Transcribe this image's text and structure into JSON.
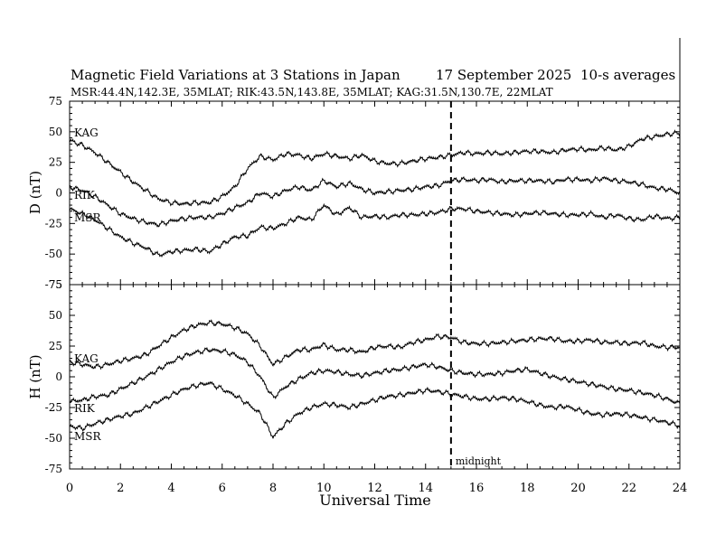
{
  "header": {
    "title": "Magnetic Field Variations at 3 Stations in Japan",
    "date": "17 September 2025",
    "averaging": "10-s averages",
    "stations": "MSR:44.4N,142.3E, 35MLAT;  RIK:43.5N,143.8E, 35MLAT;  KAG:31.5N,130.7E, 22MLAT"
  },
  "annotation": {
    "midnight_label": "midnight",
    "midnight_ut": 15
  },
  "chart_data": [
    {
      "type": "line",
      "panel": "top",
      "ylabel": "D (nT)",
      "ylim": [
        -75,
        75
      ],
      "yticks": [
        -75,
        -50,
        -25,
        0,
        25,
        50,
        75
      ],
      "xlim": [
        0,
        24
      ],
      "series": [
        {
          "name": "KAG",
          "x": [
            0,
            0.5,
            1,
            1.5,
            2,
            2.5,
            3,
            3.5,
            4,
            4.5,
            5,
            5.5,
            6,
            6.5,
            7,
            7.5,
            8,
            8.5,
            9,
            9.5,
            10,
            10.5,
            11,
            11.5,
            12,
            12.5,
            13,
            13.5,
            14,
            14.5,
            15,
            15.5,
            16,
            16.5,
            17,
            17.5,
            18,
            18.5,
            19,
            19.5,
            20,
            20.5,
            21,
            21.5,
            22,
            22.5,
            23,
            23.5,
            24
          ],
          "y": [
            43,
            39,
            33,
            25,
            17,
            9,
            2,
            -5,
            -8,
            -9,
            -8,
            -8,
            -3,
            5,
            20,
            30,
            27,
            32,
            31,
            28,
            32,
            30,
            28,
            31,
            26,
            24,
            24,
            26,
            28,
            29,
            31,
            33,
            32,
            33,
            32,
            33,
            34,
            34,
            33,
            35,
            36,
            35,
            37,
            35,
            38,
            44,
            46,
            48,
            49
          ]
        },
        {
          "name": "RIK",
          "x": [
            0,
            0.5,
            1,
            1.5,
            2,
            2.5,
            3,
            3.5,
            4,
            4.5,
            5,
            5.5,
            6,
            6.5,
            7,
            7.5,
            8,
            8.5,
            9,
            9.5,
            10,
            10.5,
            11,
            11.5,
            12,
            12.5,
            13,
            13.5,
            14,
            14.5,
            15,
            15.5,
            16,
            16.5,
            17,
            17.5,
            18,
            18.5,
            19,
            19.5,
            20,
            20.5,
            21,
            21.5,
            22,
            22.5,
            23,
            23.5,
            24
          ],
          "y": [
            5,
            2,
            -3,
            -10,
            -17,
            -21,
            -24,
            -26,
            -23,
            -21,
            -20,
            -20,
            -17,
            -12,
            -8,
            0,
            -3,
            2,
            5,
            2,
            10,
            5,
            8,
            3,
            0,
            1,
            2,
            3,
            5,
            6,
            10,
            11,
            10,
            11,
            9,
            10,
            10,
            10,
            9,
            11,
            11,
            10,
            12,
            10,
            9,
            7,
            4,
            3,
            0
          ]
        },
        {
          "name": "MSR",
          "x": [
            0,
            0.5,
            1,
            1.5,
            2,
            2.5,
            3,
            3.5,
            4,
            4.5,
            5,
            5.5,
            6,
            6.5,
            7,
            7.5,
            8,
            8.5,
            9,
            9.5,
            10,
            10.5,
            11,
            11.5,
            12,
            12.5,
            13,
            13.5,
            14,
            14.5,
            15,
            15.5,
            16,
            16.5,
            17,
            17.5,
            18,
            18.5,
            19,
            19.5,
            20,
            20.5,
            21,
            21.5,
            22,
            22.5,
            23,
            23.5,
            24
          ],
          "y": [
            -13,
            -17,
            -22,
            -29,
            -36,
            -41,
            -45,
            -51,
            -48,
            -47,
            -46,
            -48,
            -42,
            -36,
            -35,
            -28,
            -29,
            -25,
            -20,
            -22,
            -10,
            -18,
            -12,
            -20,
            -19,
            -20,
            -18,
            -18,
            -17,
            -16,
            -13,
            -13,
            -15,
            -16,
            -17,
            -18,
            -17,
            -16,
            -17,
            -18,
            -18,
            -17,
            -20,
            -18,
            -21,
            -22,
            -19,
            -21,
            -20
          ]
        }
      ]
    },
    {
      "type": "line",
      "panel": "bottom",
      "ylabel": "H (nT)",
      "xlabel": "Universal Time",
      "ylim": [
        -75,
        75
      ],
      "yticks": [
        -75,
        -50,
        -25,
        0,
        25,
        50,
        75
      ],
      "xlim": [
        0,
        24
      ],
      "xticks": [
        0,
        2,
        4,
        6,
        8,
        10,
        12,
        14,
        16,
        18,
        20,
        22,
        24
      ],
      "series": [
        {
          "name": "KAG",
          "x": [
            0,
            0.5,
            1,
            1.5,
            2,
            2.5,
            3,
            3.5,
            4,
            4.5,
            5,
            5.5,
            6,
            6.5,
            7,
            7.5,
            8,
            8.5,
            9,
            9.5,
            10,
            10.5,
            11,
            11.5,
            12,
            12.5,
            13,
            13.5,
            14,
            14.5,
            15,
            15.5,
            16,
            16.5,
            17,
            17.5,
            18,
            18.5,
            19,
            19.5,
            20,
            20.5,
            21,
            21.5,
            22,
            22.5,
            23,
            23.5,
            24
          ],
          "y": [
            12,
            10,
            8,
            10,
            13,
            15,
            18,
            25,
            32,
            38,
            42,
            44,
            43,
            40,
            35,
            25,
            10,
            16,
            22,
            22,
            26,
            22,
            22,
            20,
            24,
            25,
            24,
            28,
            30,
            33,
            32,
            28,
            27,
            27,
            28,
            29,
            30,
            31,
            31,
            29,
            29,
            30,
            28,
            28,
            27,
            28,
            25,
            24,
            24
          ]
        },
        {
          "name": "RIK",
          "x": [
            0,
            0.5,
            1,
            1.5,
            2,
            2.5,
            3,
            3.5,
            4,
            4.5,
            5,
            5.5,
            6,
            6.5,
            7,
            7.5,
            8,
            8.5,
            9,
            9.5,
            10,
            10.5,
            11,
            11.5,
            12,
            12.5,
            13,
            13.5,
            14,
            14.5,
            15,
            15.5,
            16,
            16.5,
            17,
            17.5,
            18,
            18.5,
            19,
            19.5,
            20,
            20.5,
            21,
            21.5,
            22,
            22.5,
            23,
            23.5,
            24
          ],
          "y": [
            -20,
            -19,
            -16,
            -15,
            -10,
            -5,
            0,
            6,
            12,
            17,
            20,
            22,
            21,
            18,
            12,
            0,
            -17,
            -8,
            -2,
            3,
            5,
            4,
            2,
            1,
            3,
            5,
            6,
            8,
            10,
            8,
            5,
            3,
            2,
            2,
            3,
            5,
            6,
            3,
            0,
            -2,
            -4,
            -6,
            -8,
            -10,
            -11,
            -13,
            -15,
            -18,
            -22
          ]
        },
        {
          "name": "MSR",
          "x": [
            0,
            0.5,
            1,
            1.5,
            2,
            2.5,
            3,
            3.5,
            4,
            4.5,
            5,
            5.5,
            6,
            6.5,
            7,
            7.5,
            8,
            8.5,
            9,
            9.5,
            10,
            10.5,
            11,
            11.5,
            12,
            12.5,
            13,
            13.5,
            14,
            14.5,
            15,
            15.5,
            16,
            16.5,
            17,
            17.5,
            18,
            18.5,
            19,
            19.5,
            20,
            20.5,
            21,
            21.5,
            22,
            22.5,
            23,
            23.5,
            24
          ],
          "y": [
            -40,
            -42,
            -38,
            -35,
            -32,
            -30,
            -25,
            -20,
            -15,
            -10,
            -7,
            -5,
            -10,
            -15,
            -22,
            -30,
            -49,
            -38,
            -30,
            -25,
            -22,
            -23,
            -25,
            -22,
            -19,
            -16,
            -15,
            -13,
            -11,
            -12,
            -14,
            -16,
            -18,
            -18,
            -17,
            -18,
            -20,
            -23,
            -25,
            -24,
            -27,
            -30,
            -31,
            -30,
            -31,
            -33,
            -35,
            -37,
            -40
          ]
        }
      ]
    }
  ]
}
